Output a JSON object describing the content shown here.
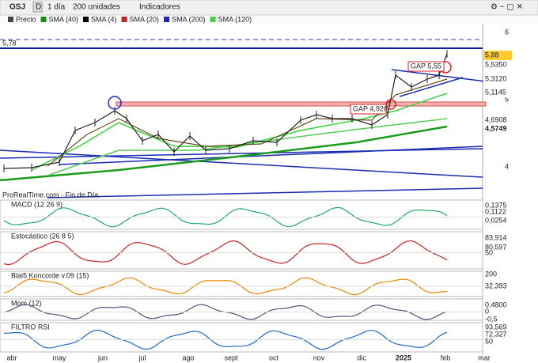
{
  "toolbar": {
    "symbol": "GSJ",
    "mode": "D",
    "period": "1 día",
    "units": "200 unidades",
    "indicators": "Indicadores"
  },
  "price_panel": {
    "legend": [
      "Precio",
      "SMA (40)",
      "SMA (4)",
      "SMA (20)",
      "SMA (200)",
      "SMA (120)"
    ],
    "axis_labels": [
      "6",
      "5",
      "4"
    ],
    "level_label": "5,78",
    "value_tags": [
      "5,88",
      "5,5350",
      "5,3120",
      "5,1145",
      "4,6908",
      "4,5749"
    ],
    "annotations": [
      "GAP 5,55",
      "GAP 4,926"
    ],
    "source": "ProRealTime.com - Fin de Día"
  },
  "indicator_panels": [
    {
      "title": "MACD (12 26 9)",
      "axis_labels": [
        "0,1375",
        "0,1122",
        "0,0254"
      ]
    },
    {
      "title": "Estocástico (26 8 5)",
      "axis_labels": [
        "83,914",
        "80,597",
        "50"
      ]
    },
    {
      "title": "Blai5 Koncorde v.09 (15)",
      "axis_labels": [
        "200",
        "32,393"
      ]
    },
    {
      "title": "Mom (12)",
      "axis_labels": [
        "0,4800",
        "0",
        "-0,5"
      ]
    },
    {
      "title": "FILTRO RSI",
      "axis_labels": [
        "93,569",
        "72,327",
        "50"
      ]
    }
  ],
  "x_axis": [
    "abr",
    "may",
    "jun",
    "jul",
    "ago",
    "sept",
    "oct",
    "nov",
    "dic",
    "2025",
    "feb",
    "mar"
  ]
}
